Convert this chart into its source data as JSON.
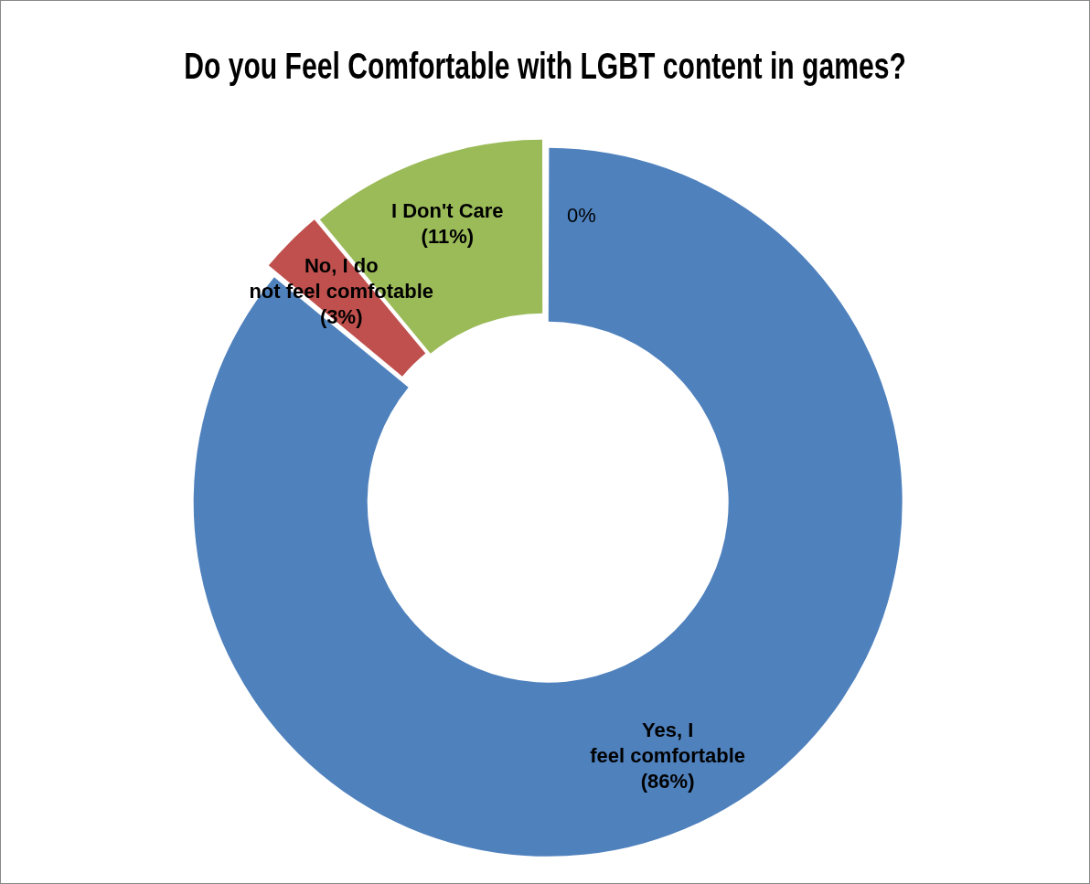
{
  "chart_data": {
    "type": "donut",
    "title": "Do you Feel Comfortable with LGBT content in games?",
    "categories": [
      "Yes, I feel comfortable",
      "No, I do not feel comfotable",
      "I Don't Care",
      null
    ],
    "values": [
      86,
      3,
      11,
      0
    ],
    "value_labels": [
      "(86%)",
      "(3%)",
      "(11%)",
      "0%"
    ],
    "colors": [
      "#4f81bd",
      "#c0504d",
      "#9bbb59",
      "#8064a2"
    ],
    "legend": false
  }
}
